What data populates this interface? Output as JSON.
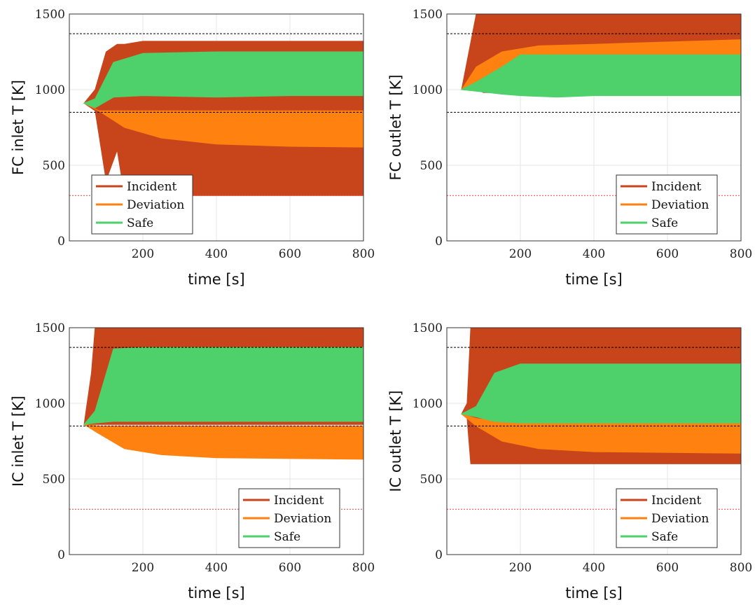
{
  "colors": {
    "incident": "#C8451C",
    "deviation": "#FF8210",
    "safe": "#4ED06A",
    "limit_upper": "#000000",
    "limit_lower": "#000000",
    "limit_red": "#E84040"
  },
  "chart_data": [
    {
      "type": "area",
      "title": "",
      "xlabel": "time [s]",
      "ylabel": "FC inlet T [K]",
      "xlim": [
        0,
        800
      ],
      "ylim": [
        0,
        1500
      ],
      "xticks": [
        "200",
        "400",
        "600",
        "800"
      ],
      "yticks": [
        "0",
        "500",
        "1000",
        "1500"
      ],
      "grid": true,
      "legend": {
        "position": "lower-left",
        "entries": [
          "Incident",
          "Deviation",
          "Safe"
        ]
      },
      "reference_lines": {
        "black_dashed": [
          1370,
          850
        ],
        "red_dotted": [
          1500,
          300
        ]
      },
      "series": [
        {
          "name": "Incident",
          "bands": [
            {
              "x": [
                40,
                70,
                100,
                130,
                150,
                200,
                800
              ],
              "low": [
                910,
                860,
                400,
                600,
                300,
                300,
                300
              ],
              "high": [
                910,
                1000,
                1250,
                1300,
                1300,
                1320,
                1320
              ]
            },
            {
              "x": [
                100,
                800
              ],
              "low": [
                960,
                960
              ],
              "high": [
                1040,
                1040
              ]
            }
          ]
        },
        {
          "name": "Deviation",
          "bands": [
            {
              "x": [
                40,
                80,
                150,
                250,
                400,
                600,
                800
              ],
              "low": [
                910,
                860,
                750,
                680,
                640,
                625,
                620
              ],
              "high": [
                910,
                860,
                860,
                860,
                860,
                860,
                860
              ]
            }
          ]
        },
        {
          "name": "Safe",
          "bands": [
            {
              "x": [
                40,
                70,
                120,
                200,
                400,
                600,
                800
              ],
              "low": [
                910,
                880,
                950,
                960,
                950,
                960,
                960
              ],
              "high": [
                910,
                940,
                1180,
                1240,
                1250,
                1250,
                1250
              ]
            }
          ]
        }
      ]
    },
    {
      "type": "area",
      "title": "",
      "xlabel": "time [s]",
      "ylabel": "FC outlet T [K]",
      "xlim": [
        0,
        800
      ],
      "ylim": [
        0,
        1500
      ],
      "xticks": [
        "200",
        "400",
        "600",
        "800"
      ],
      "yticks": [
        "0",
        "500",
        "1000",
        "1500"
      ],
      "grid": true,
      "legend": {
        "position": "lower-right",
        "entries": [
          "Incident",
          "Deviation",
          "Safe"
        ]
      },
      "reference_lines": {
        "black_dashed": [
          1370,
          850
        ],
        "red_dotted": [
          1500,
          300
        ]
      },
      "series": [
        {
          "name": "Incident",
          "bands": [
            {
              "x": [
                40,
                80,
                100,
                800
              ],
              "low": [
                1000,
                1000,
                980,
                980
              ],
              "high": [
                1000,
                1500,
                1500,
                1500
              ]
            }
          ]
        },
        {
          "name": "Deviation",
          "bands": [
            {
              "x": [
                40,
                80,
                150,
                250,
                400,
                800
              ],
              "low": [
                1000,
                1000,
                1000,
                1000,
                1000,
                1000
              ],
              "high": [
                1000,
                1150,
                1250,
                1290,
                1300,
                1330
              ]
            }
          ]
        },
        {
          "name": "Safe",
          "bands": [
            {
              "x": [
                40,
                80,
                150,
                200,
                300,
                400,
                800
              ],
              "low": [
                1000,
                990,
                970,
                960,
                950,
                960,
                960
              ],
              "high": [
                1000,
                1050,
                1150,
                1230,
                1230,
                1230,
                1230
              ]
            }
          ]
        }
      ]
    },
    {
      "type": "area",
      "title": "",
      "xlabel": "time [s]",
      "ylabel": "IC inlet T [K]",
      "xlim": [
        0,
        800
      ],
      "ylim": [
        0,
        1500
      ],
      "xticks": [
        "200",
        "400",
        "600",
        "800"
      ],
      "yticks": [
        "0",
        "500",
        "1000",
        "1500"
      ],
      "grid": true,
      "legend": {
        "position": "lower-right",
        "entries": [
          "Incident",
          "Deviation",
          "Safe"
        ]
      },
      "reference_lines": {
        "black_dashed": [
          1370,
          850
        ],
        "red_dotted": [
          1500,
          300
        ]
      },
      "series": [
        {
          "name": "Incident",
          "bands": [
            {
              "x": [
                40,
                60,
                70,
                800
              ],
              "low": [
                860,
                860,
                860,
                860
              ],
              "high": [
                860,
                1200,
                1500,
                1500
              ]
            }
          ]
        },
        {
          "name": "Deviation",
          "bands": [
            {
              "x": [
                40,
                80,
                150,
                250,
                400,
                800
              ],
              "low": [
                860,
                800,
                700,
                660,
                640,
                630
              ],
              "high": [
                860,
                850,
                850,
                850,
                850,
                850
              ]
            }
          ]
        },
        {
          "name": "Safe",
          "bands": [
            {
              "x": [
                40,
                70,
                120,
                200,
                400,
                800
              ],
              "low": [
                860,
                870,
                880,
                880,
                880,
                880
              ],
              "high": [
                860,
                950,
                1360,
                1370,
                1370,
                1370
              ]
            }
          ]
        }
      ]
    },
    {
      "type": "area",
      "title": "",
      "xlabel": "time [s]",
      "ylabel": "IC outlet T [K]",
      "xlim": [
        0,
        800
      ],
      "ylim": [
        0,
        1500
      ],
      "xticks": [
        "200",
        "400",
        "600",
        "800"
      ],
      "yticks": [
        "0",
        "500",
        "1000",
        "1500"
      ],
      "grid": true,
      "legend": {
        "position": "lower-right",
        "entries": [
          "Incident",
          "Deviation",
          "Safe"
        ]
      },
      "reference_lines": {
        "black_dashed": [
          1370,
          850
        ],
        "red_dotted": [
          1500,
          300
        ]
      },
      "series": [
        {
          "name": "Incident",
          "bands": [
            {
              "x": [
                40,
                55,
                65,
                800
              ],
              "low": [
                930,
                900,
                600,
                600
              ],
              "high": [
                930,
                1000,
                1500,
                1500
              ]
            }
          ]
        },
        {
          "name": "Deviation",
          "bands": [
            {
              "x": [
                40,
                80,
                150,
                250,
                400,
                800
              ],
              "low": [
                930,
                850,
                750,
                700,
                680,
                670
              ],
              "high": [
                930,
                900,
                880,
                870,
                870,
                870
              ]
            }
          ]
        },
        {
          "name": "Safe",
          "bands": [
            {
              "x": [
                40,
                80,
                130,
                200,
                400,
                800
              ],
              "low": [
                930,
                910,
                880,
                870,
                870,
                870
              ],
              "high": [
                930,
                980,
                1200,
                1260,
                1260,
                1260
              ]
            }
          ]
        }
      ]
    }
  ]
}
